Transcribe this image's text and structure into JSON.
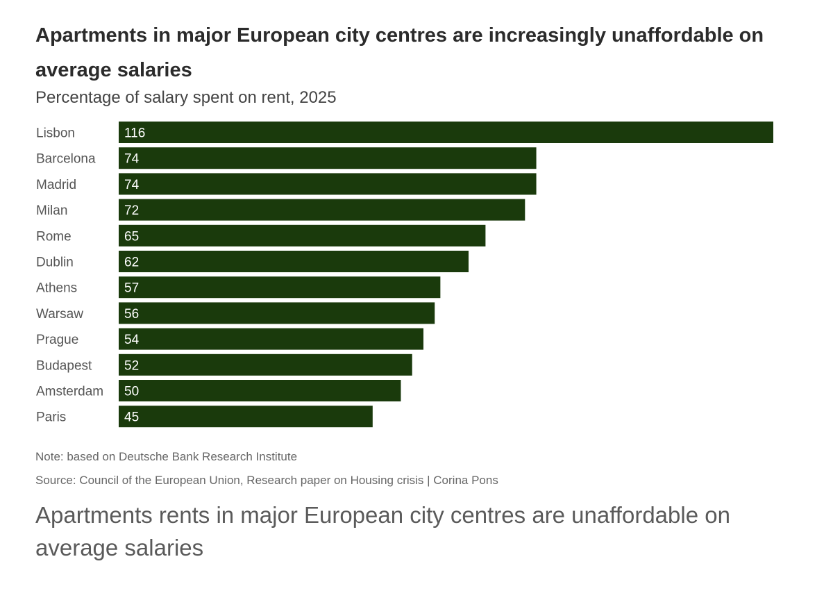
{
  "chart_data": {
    "type": "bar",
    "orientation": "horizontal",
    "title": "Apartments in major European city centres are increasingly unaffordable on average salaries",
    "subtitle": "Percentage of salary spent on rent, 2025",
    "categories": [
      "Lisbon",
      "Barcelona",
      "Madrid",
      "Milan",
      "Rome",
      "Dublin",
      "Athens",
      "Warsaw",
      "Prague",
      "Budapest",
      "Amsterdam",
      "Paris"
    ],
    "values": [
      116,
      74,
      74,
      72,
      65,
      62,
      57,
      56,
      54,
      52,
      50,
      45
    ],
    "xlim": [
      0,
      116
    ],
    "bar_color": "#1a3a0c",
    "value_label_color": "#ffffff",
    "grid": false,
    "note": "Note: based on Deutsche Bank Research Institute",
    "source": "Source: Council of the European Union, Research paper on Housing crisis | Corina Pons"
  },
  "caption": "Apartments rents in major European city centres are unaffordable on average salaries"
}
